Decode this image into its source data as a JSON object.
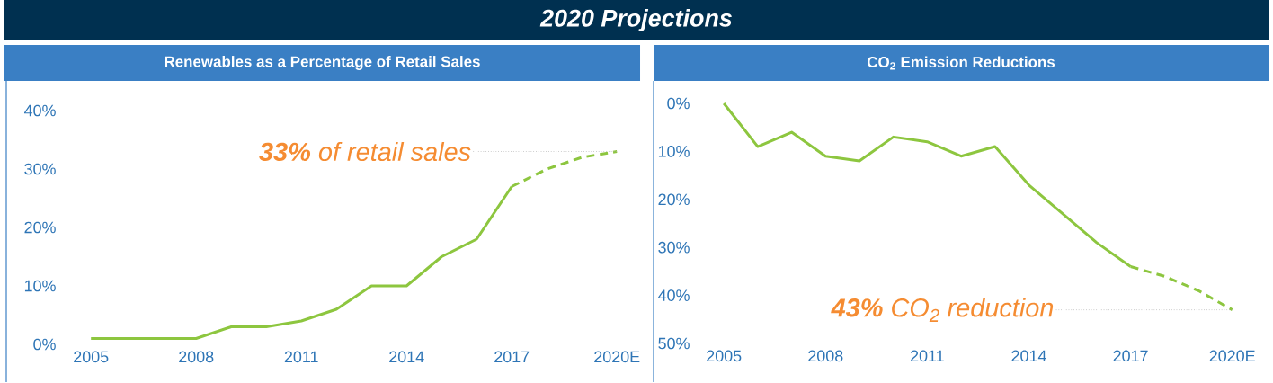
{
  "chart_data": [
    {
      "type": "line",
      "title": "2020 Projections",
      "subtitle": "Renewables as a Percentage of Retail Sales",
      "categories": [
        "2005",
        null,
        null,
        "2008",
        null,
        null,
        "2011",
        null,
        null,
        "2014",
        null,
        null,
        "2017",
        null,
        null,
        "2020E"
      ],
      "series": [
        {
          "color": "#8dc63f",
          "line_style": "solid",
          "values": [
            1,
            1,
            1,
            1,
            3,
            3,
            4,
            6,
            10,
            10,
            15,
            18,
            27,
            null,
            null,
            null
          ]
        },
        {
          "color": "#8dc63f",
          "line_style": "dashed",
          "values": [
            null,
            null,
            null,
            null,
            null,
            null,
            null,
            null,
            null,
            null,
            null,
            null,
            27,
            30,
            32,
            33
          ]
        }
      ],
      "ylim": [
        0,
        40
      ],
      "yticks": [
        {
          "value": 0,
          "label": "0%"
        },
        {
          "value": 10,
          "label": "10%"
        },
        {
          "value": 20,
          "label": "20%"
        },
        {
          "value": 30,
          "label": "30%"
        },
        {
          "value": 40,
          "label": "40%"
        }
      ],
      "annotations": [
        {
          "text": "**33%** of retail sales",
          "x": "2020E",
          "y": 33
        }
      ]
    },
    {
      "type": "line",
      "subtitle": "CO$_{2}$ Emission Reductions",
      "categories": [
        "2005",
        null,
        null,
        "2008",
        null,
        null,
        "2011",
        null,
        null,
        "2014",
        null,
        null,
        "2017",
        null,
        null,
        "2020E"
      ],
      "series": [
        {
          "color": "#8dc63f",
          "line_style": "solid",
          "values": [
            0,
            9,
            6,
            11,
            12,
            7,
            8,
            11,
            9,
            17,
            23,
            29,
            34,
            null,
            null,
            null
          ]
        },
        {
          "color": "#8dc63f",
          "line_style": "dashed",
          "values": [
            null,
            null,
            null,
            null,
            null,
            null,
            null,
            null,
            null,
            null,
            null,
            null,
            34,
            36,
            39,
            43
          ]
        }
      ],
      "ylim": [
        50,
        0
      ],
      "yticks": [
        {
          "value": 0,
          "label": "0%"
        },
        {
          "value": 10,
          "label": "10%"
        },
        {
          "value": 20,
          "label": "20%"
        },
        {
          "value": 30,
          "label": "30%"
        },
        {
          "value": 40,
          "label": "40%"
        },
        {
          "value": 50,
          "label": "50%"
        }
      ],
      "annotations": [
        {
          "text": "**43%** CO$_{2}$ reduction",
          "x": "2020E",
          "y": 43
        }
      ]
    }
  ]
}
